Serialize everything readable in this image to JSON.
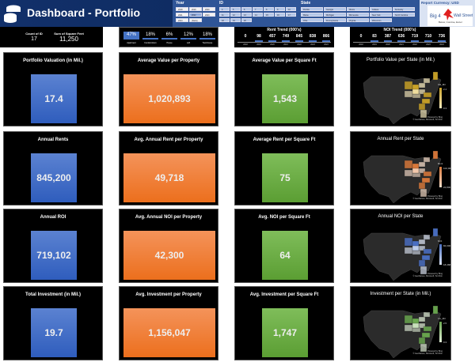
{
  "header": {
    "title": "Dashboard - Portfolio",
    "icon": "coins-icon"
  },
  "slicers": {
    "year": {
      "title": "Year",
      "items": [
        "2018",
        "2019",
        "2020",
        "2021",
        "2022",
        "2023",
        "2024",
        "(blank)"
      ],
      "selected": "2022"
    },
    "id": {
      "title": "ID",
      "items": [
        "4",
        "5",
        "6",
        "7",
        "8",
        "9",
        "10",
        "11",
        "12",
        "13",
        "14",
        "15",
        "16",
        "17",
        "18",
        "19",
        "20"
      ]
    },
    "state": {
      "title": "State",
      "items": [
        "Florida",
        "Georgia",
        "Illinois",
        "Indiana",
        "Kentucky",
        "Maine",
        "Michigan",
        "Minnesota",
        "New York",
        "North Carolina",
        "Ohio",
        "Pennsylvania",
        "Virginia",
        "Wisconsin"
      ]
    }
  },
  "currency": {
    "label": "Report Currency: USD",
    "logo_text": "Big 4 Wall Street",
    "logo_sub": "Below, Concise, Excel"
  },
  "summary": {
    "count_label": "Count of ID",
    "count_value": "17",
    "sqft_label": "Sum of Square Feet",
    "sqft_value": "11,250"
  },
  "categories": [
    {
      "label": "Apartment",
      "pct": "47%",
      "value": 47
    },
    {
      "label": "Condominium",
      "pct": "18%",
      "value": 18
    },
    {
      "label": "House",
      "pct": "6%",
      "value": 6
    },
    {
      "label": "Loft",
      "pct": "12%",
      "value": 12
    },
    {
      "label": "Townhouse",
      "pct": "18%",
      "value": 18
    }
  ],
  "rent_trend": {
    "title": "Rent Trend (000's)",
    "years": [
      "2018",
      "2019",
      "2020",
      "2021",
      "2022",
      "2023",
      "2024"
    ],
    "values": [
      "0",
      "98",
      "457",
      "749",
      "845",
      "838",
      "866"
    ]
  },
  "noi_trend": {
    "title": "NOI Trend (000's)",
    "years": [
      "2018",
      "2019",
      "2020",
      "2021",
      "2022",
      "2023",
      "2024"
    ],
    "values": [
      "0",
      "83",
      "387",
      "636",
      "719",
      "710",
      "736"
    ]
  },
  "cards": [
    [
      {
        "title": "Portfolio Valuation (in Mil.)",
        "value": "17.4",
        "style": "blue"
      },
      {
        "title": "Average Value per Property",
        "value": "1,020,893",
        "style": "orange"
      },
      {
        "title": "Average Value per Square Ft",
        "value": "1,543",
        "style": "green"
      }
    ],
    [
      {
        "title": "Annual Rents",
        "value": "845,200",
        "style": "blue"
      },
      {
        "title": "Avg. Annual Rent per Property",
        "value": "49,718",
        "style": "orange"
      },
      {
        "title": "Average Rent per Square Ft",
        "value": "75",
        "style": "green"
      }
    ],
    [
      {
        "title": "Annual ROI",
        "value": "719,102",
        "style": "blue"
      },
      {
        "title": "Avg. Annual NOI per Property",
        "value": "42,300",
        "style": "orange"
      },
      {
        "title": "Avg. NOI per Square Ft",
        "value": "64",
        "style": "green"
      }
    ],
    [
      {
        "title": "Total Investment (in Mil.)",
        "value": "19.7",
        "style": "blue"
      },
      {
        "title": "Avg. Investment per Property",
        "value": "1,156,047",
        "style": "orange"
      },
      {
        "title": "Avg. Investment per Square Ft",
        "value": "1,747",
        "style": "green"
      }
    ]
  ],
  "maps": [
    {
      "title": "Portfolio Value per State (in Mil.)",
      "legend": "Val_Mil",
      "max": "2.4",
      "min": "0.3",
      "color": "#c9a227",
      "light": "#fbeec0"
    },
    {
      "title": "Annual Rent per State",
      "legend": "Rent",
      "max": "102,000",
      "min": "22,800",
      "color": "#d9783a",
      "light": "#fbe0cc"
    },
    {
      "title": "Annual NOI per State",
      "legend": "NOI",
      "max": "84,000",
      "min": "18,468",
      "color": "#4a6fc4",
      "light": "#dfe7f7"
    },
    {
      "title": "Investment per State (in Mil.)",
      "legend": "Inv_Mil",
      "max": "2.5",
      "min": "0.3",
      "color": "#6aa84f",
      "light": "#e4f1da"
    }
  ],
  "map_credit": "Powered by Bing\n© GeoNames, Microsoft, TomTom"
}
